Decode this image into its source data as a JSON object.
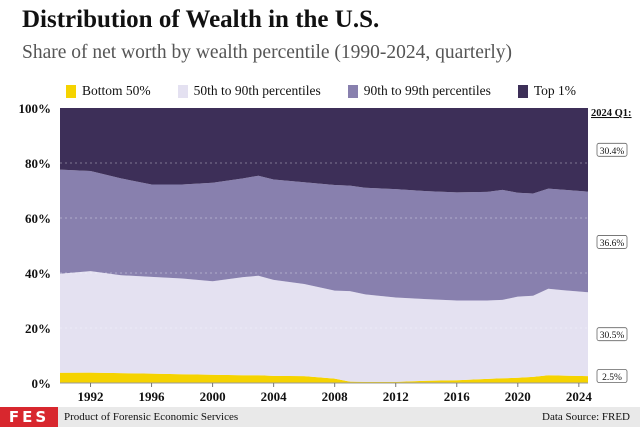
{
  "header": {
    "title": "Distribution of Wealth in the U.S.",
    "subtitle": "Share of net worth by wealth percentile (1990-2024, quarterly)"
  },
  "footer": {
    "logo": "FES",
    "credit": "Product of Forensic Economic Services",
    "source": "Data Source: FRED"
  },
  "chart_data": {
    "type": "area",
    "stacked": true,
    "x": [
      1990,
      1992,
      1994,
      1996,
      1998,
      2000,
      2002,
      2003,
      2004,
      2006,
      2008,
      2009,
      2010,
      2012,
      2014,
      2016,
      2018,
      2019,
      2020,
      2021,
      2022,
      2023,
      2024
    ],
    "series": [
      {
        "name": "Bottom 50%",
        "color": "#f5d300",
        "values": [
          3.7,
          3.8,
          3.6,
          3.4,
          3.2,
          3.0,
          2.8,
          2.8,
          2.6,
          2.5,
          1.6,
          0.5,
          0.4,
          0.4,
          0.8,
          1.0,
          1.5,
          1.7,
          1.9,
          2.2,
          2.8,
          2.7,
          2.5
        ]
      },
      {
        "name": "50th to 90th percentiles",
        "color": "#e4e1f1",
        "values": [
          36.0,
          36.9,
          35.6,
          35.2,
          34.8,
          34.0,
          35.7,
          36.2,
          34.9,
          33.5,
          32.0,
          32.9,
          31.8,
          30.7,
          29.7,
          29.0,
          28.5,
          28.5,
          29.5,
          29.5,
          31.5,
          31.0,
          30.5
        ]
      },
      {
        "name": "90th to 99th percentiles",
        "color": "#8880ae",
        "values": [
          37.9,
          36.4,
          35.2,
          33.6,
          34.2,
          35.8,
          35.9,
          36.4,
          36.5,
          37.0,
          38.4,
          38.4,
          38.8,
          39.4,
          39.3,
          39.3,
          39.5,
          40.0,
          37.8,
          37.2,
          36.4,
          36.6,
          36.6
        ]
      },
      {
        "name": "Top 1%",
        "color": "#3d2f58",
        "values": [
          22.4,
          22.9,
          25.6,
          27.8,
          27.8,
          27.2,
          25.6,
          24.6,
          26.0,
          27.0,
          28.0,
          28.2,
          29.0,
          29.5,
          30.2,
          30.7,
          30.5,
          29.8,
          30.8,
          31.1,
          29.3,
          29.7,
          30.4
        ]
      }
    ],
    "xlabel": "",
    "ylabel": "",
    "ylim": [
      0,
      100
    ],
    "yticks": [
      "0%",
      "20%",
      "40%",
      "60%",
      "80%",
      "100%"
    ],
    "xticks": [
      "1992",
      "1996",
      "2000",
      "2004",
      "2008",
      "2012",
      "2016",
      "2020",
      "2024"
    ],
    "grid": true,
    "legend": "top",
    "end_label_title": "2024 Q1:",
    "end_labels": [
      "30.4%",
      "36.6%",
      "30.5%",
      "2.5%"
    ]
  }
}
